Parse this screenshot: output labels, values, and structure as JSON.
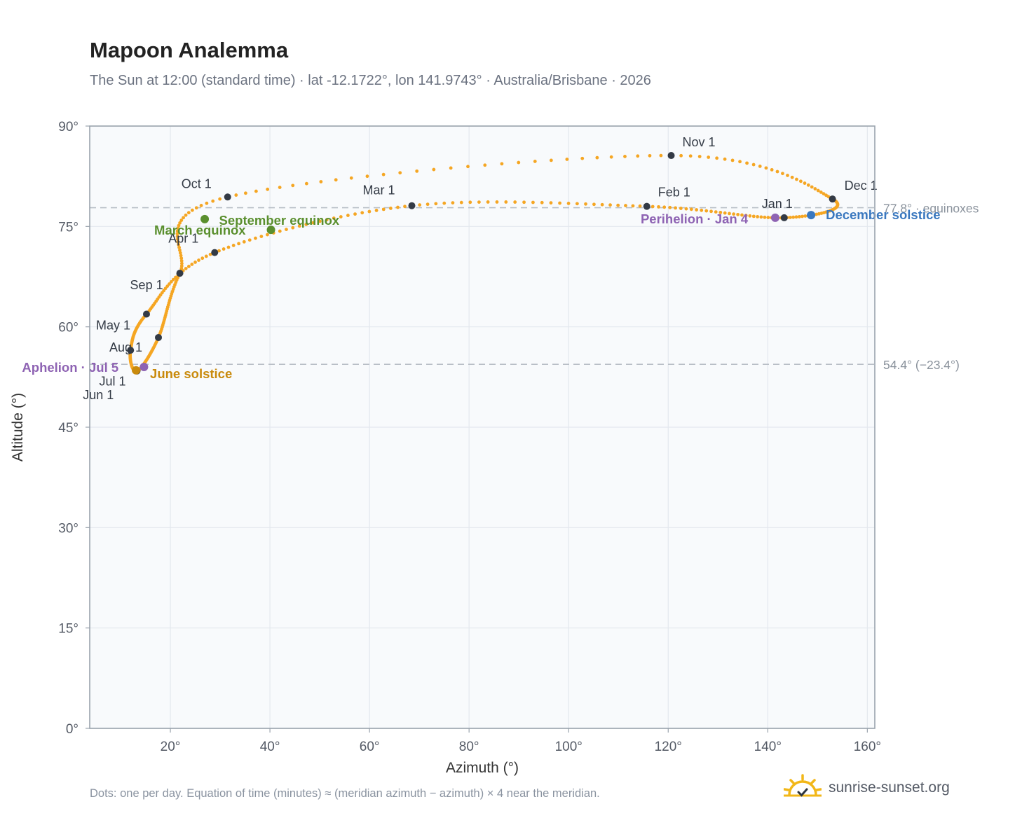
{
  "header": {
    "title": "Mapoon Analemma",
    "subtitle": "The Sun at 12:00 (standard time) · lat -12.1722°, lon 141.9743° · Australia/Brisbane · 2026"
  },
  "footer": {
    "note": "Dots: one per day. Equation of time (minutes) ≈ (meridian azimuth − azimuth) × 4 near the meridian.",
    "brand": "sunrise-sunset.org"
  },
  "colors": {
    "path": "#f5a623",
    "month_marker": "#333a45",
    "equinox": "#5a8f2e",
    "june_solstice": "#c98a0c",
    "december_solstice": "#3a78bf",
    "apsis": "#8e63b3",
    "reference_line": "#b8bec6",
    "brand_sun": "#f2b718"
  },
  "chart_data": {
    "type": "scatter",
    "xlabel": "Azimuth (°)",
    "ylabel": "Altitude (°)",
    "xlim": [
      3.8,
      161.5
    ],
    "ylim": [
      0,
      90
    ],
    "x_ticks": [
      20,
      40,
      60,
      80,
      100,
      120,
      140,
      160
    ],
    "x_tick_labels": [
      "20°",
      "40°",
      "60°",
      "80°",
      "100°",
      "120°",
      "140°",
      "160°"
    ],
    "y_ticks": [
      0,
      15,
      30,
      45,
      60,
      75,
      90
    ],
    "y_tick_labels": [
      "0°",
      "15°",
      "30°",
      "45°",
      "60°",
      "75°",
      "90°"
    ],
    "grid": true,
    "reference_lines": [
      {
        "y": 77.8,
        "label": "77.8° · equinoxes"
      },
      {
        "y": 54.4,
        "label": "54.4° (−23.4°)"
      }
    ],
    "path_keypoints": [
      {
        "date": "Jan 1",
        "az": 143.3,
        "alt": 76.3
      },
      {
        "date": "Feb 1",
        "az": 115.7,
        "alt": 78.0
      },
      {
        "date": "Mar 1",
        "az": 68.5,
        "alt": 78.1
      },
      {
        "date": "Apr 1",
        "az": 28.9,
        "alt": 71.1
      },
      {
        "date": "May 1",
        "az": 15.2,
        "alt": 61.9
      },
      {
        "date": "Jun 1",
        "az": 12.0,
        "alt": 56.5
      },
      {
        "date": "Jul 1",
        "az": 13.3,
        "alt": 53.4
      },
      {
        "date": "Aug 1",
        "az": 17.6,
        "alt": 58.4
      },
      {
        "date": "Sep 1",
        "az": 21.9,
        "alt": 68.0
      },
      {
        "date": "Oct 1",
        "az": 31.5,
        "alt": 79.4
      },
      {
        "date": "Nov 1",
        "az": 120.6,
        "alt": 85.6
      },
      {
        "date": "Dec 1",
        "az": 153.0,
        "alt": 79.1
      }
    ],
    "month_markers": [
      {
        "label": "Jan 1",
        "az": 143.3,
        "alt": 76.3,
        "dx": -32,
        "dy": -14
      },
      {
        "label": "Feb 1",
        "az": 115.7,
        "alt": 78.0,
        "dx": 16,
        "dy": -14
      },
      {
        "label": "Mar 1",
        "az": 68.5,
        "alt": 78.1,
        "dx": -70,
        "dy": -16
      },
      {
        "label": "Apr 1",
        "az": 28.9,
        "alt": 71.1,
        "dx": -66,
        "dy": -14
      },
      {
        "label": "May 1",
        "az": 15.2,
        "alt": 61.9,
        "dx": -72,
        "dy": 22
      },
      {
        "label": "Jun 1",
        "az": 12.0,
        "alt": 56.5,
        "dx": -68,
        "dy": 70
      },
      {
        "label": "Jul 1",
        "az": 13.3,
        "alt": 53.4,
        "dx": -54,
        "dy": 21
      },
      {
        "label": "Aug 1",
        "az": 17.6,
        "alt": 58.4,
        "dx": -70,
        "dy": 20
      },
      {
        "label": "Sep 1",
        "az": 21.9,
        "alt": 68.0,
        "dx": -71,
        "dy": 23
      },
      {
        "label": "Oct 1",
        "az": 31.5,
        "alt": 79.4,
        "dx": -66,
        "dy": -13
      },
      {
        "label": "Nov 1",
        "az": 120.6,
        "alt": 85.6,
        "dx": 16,
        "dy": -13
      },
      {
        "label": "Dec 1",
        "az": 153.0,
        "alt": 79.1,
        "dx": 17,
        "dy": -13
      }
    ],
    "events": [
      {
        "label": "March equinox",
        "az": 26.9,
        "alt": 76.1,
        "color": "#5a8f2e",
        "dx": -72,
        "dy": 22
      },
      {
        "label": "September equinox",
        "az": 40.2,
        "alt": 74.5,
        "color": "#5a8f2e",
        "dx": -74,
        "dy": -7
      },
      {
        "label": "June solstice",
        "az": 13.1,
        "alt": 53.5,
        "color": "#c98a0c",
        "dx": 20,
        "dy": 11
      },
      {
        "label": "December solstice",
        "az": 148.7,
        "alt": 76.7,
        "color": "#3a78bf",
        "dx": 21,
        "dy": 6
      },
      {
        "label": "Aphelion · Jul 5",
        "az": 14.7,
        "alt": 54.0,
        "color": "#8e63b3",
        "dx": -174,
        "dy": 7
      },
      {
        "label": "Perihelion · Jan 4",
        "az": 141.5,
        "alt": 76.3,
        "color": "#8e63b3",
        "dx": -192,
        "dy": 8
      }
    ]
  }
}
